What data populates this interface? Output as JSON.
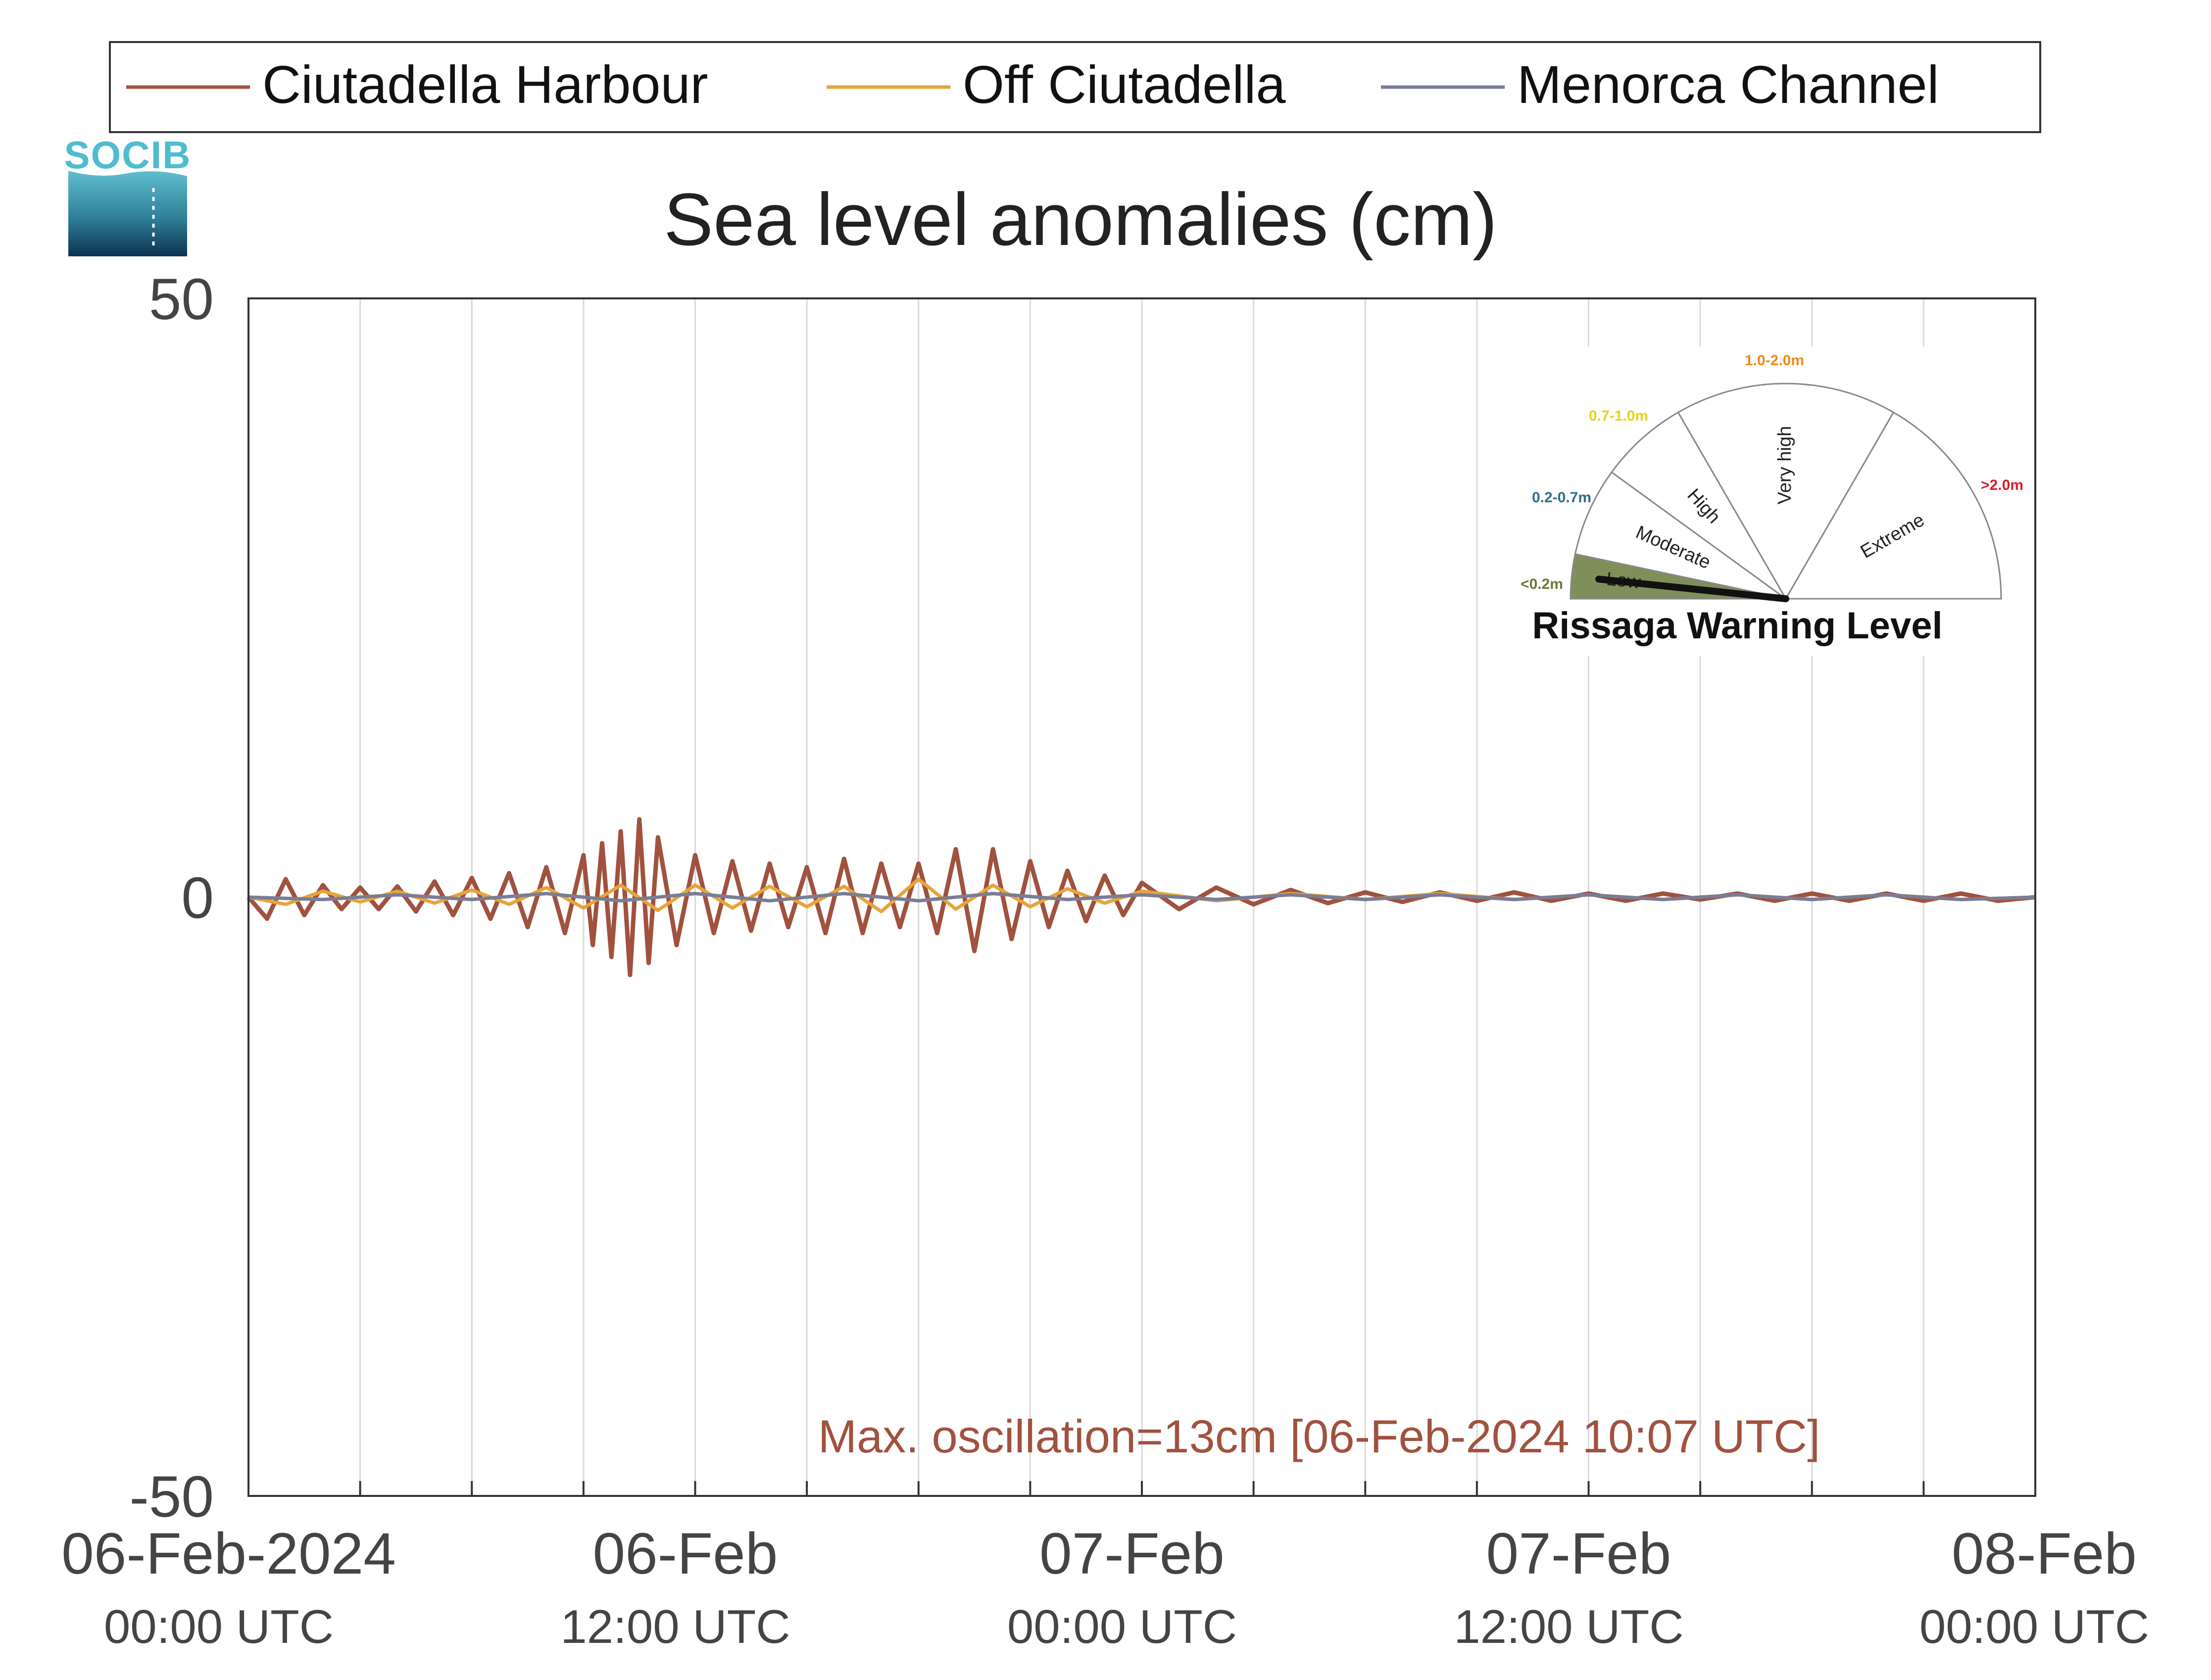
{
  "logo": {
    "text": "SOCIB",
    "color": "#4dbdcf"
  },
  "chart_data": {
    "type": "line",
    "title": "Sea level anomalies (cm)",
    "xlabel": "",
    "ylabel": "",
    "ylim": [
      -50,
      50
    ],
    "xlim_hours": [
      0,
      48
    ],
    "yticks": [
      {
        "value": 50,
        "label": "50"
      },
      {
        "value": 0,
        "label": "0"
      },
      {
        "value": -50,
        "label": "-50"
      }
    ],
    "xticks": [
      {
        "hour": 0,
        "line1": "06-Feb-2024",
        "line2": "00:00 UTC"
      },
      {
        "hour": 12,
        "line1": "06-Feb",
        "line2": "12:00 UTC"
      },
      {
        "hour": 24,
        "line1": "07-Feb",
        "line2": "00:00 UTC"
      },
      {
        "hour": 36,
        "line1": "07-Feb",
        "line2": "12:00 UTC"
      },
      {
        "hour": 48,
        "line1": "08-Feb",
        "line2": "00:00 UTC"
      }
    ],
    "grid": true,
    "grid_step_hours": 3,
    "legend_position": "top",
    "series": [
      {
        "name": "Ciutadella Harbour",
        "color": "#a0523f",
        "x_hours": [
          0,
          0.5,
          1,
          1.5,
          2,
          2.5,
          3,
          3.5,
          4,
          4.5,
          5,
          5.5,
          6,
          6.5,
          7,
          7.5,
          8,
          8.5,
          9,
          9.25,
          9.5,
          9.75,
          10,
          10.25,
          10.5,
          10.75,
          11,
          11.5,
          12,
          12.5,
          13,
          13.5,
          14,
          14.5,
          15,
          15.5,
          16,
          16.5,
          17,
          17.5,
          18,
          18.5,
          19,
          19.5,
          20,
          20.5,
          21,
          21.5,
          22,
          22.5,
          23,
          23.5,
          24,
          25,
          26,
          27,
          28,
          29,
          30,
          31,
          32,
          33,
          34,
          35,
          36,
          37,
          38,
          39,
          40,
          41,
          42,
          43,
          44,
          45,
          46,
          47,
          48
        ],
        "values": [
          0,
          -1.8,
          1.5,
          -1.5,
          1.0,
          -1.0,
          0.8,
          -1.0,
          0.9,
          -1.2,
          1.3,
          -1.5,
          1.6,
          -1.8,
          2.0,
          -2.5,
          2.5,
          -3.0,
          3.5,
          -4.0,
          4.5,
          -5.0,
          5.5,
          -6.5,
          6.5,
          -5.5,
          5.0,
          -4.0,
          3.5,
          -3.0,
          3.0,
          -2.8,
          2.8,
          -2.5,
          2.5,
          -3.0,
          3.2,
          -3.0,
          2.8,
          -2.5,
          2.8,
          -3.0,
          4.0,
          -4.5,
          4.0,
          -3.5,
          3.0,
          -2.5,
          2.2,
          -2.0,
          1.8,
          -1.5,
          1.2,
          -1.0,
          0.8,
          -0.6,
          0.6,
          -0.5,
          0.4,
          -0.4,
          0.4,
          -0.3,
          0.4,
          -0.3,
          0.3,
          -0.3,
          0.3,
          -0.2,
          0.3,
          -0.3,
          0.3,
          -0.3,
          0.3,
          -0.3,
          0.3,
          -0.3,
          0
        ]
      },
      {
        "name": "Off Ciutadella",
        "color": "#e6a43a",
        "x_hours": [
          0,
          1,
          2,
          3,
          4,
          5,
          6,
          7,
          8,
          9,
          10,
          11,
          12,
          13,
          14,
          15,
          16,
          17,
          18,
          19,
          20,
          21,
          22,
          23,
          24,
          26,
          28,
          30,
          32,
          34,
          36,
          38,
          40,
          42,
          44,
          46,
          48
        ],
        "values": [
          0,
          -0.6,
          0.5,
          -0.4,
          0.5,
          -0.5,
          0.6,
          -0.6,
          0.8,
          -0.9,
          1.0,
          -1.1,
          1.0,
          -0.9,
          0.9,
          -0.8,
          0.9,
          -1.2,
          1.5,
          -1.0,
          1.0,
          -0.8,
          0.7,
          -0.5,
          0.5,
          -0.3,
          0.3,
          -0.2,
          0.3,
          -0.2,
          0.2,
          -0.2,
          0.2,
          -0.2,
          0.2,
          -0.2,
          0
        ]
      },
      {
        "name": "Menorca Channel",
        "color": "#7a7d96",
        "x_hours": [
          0,
          2,
          4,
          6,
          8,
          10,
          12,
          14,
          16,
          18,
          20,
          22,
          24,
          26,
          28,
          30,
          32,
          34,
          36,
          38,
          40,
          42,
          44,
          46,
          48
        ],
        "values": [
          0,
          -0.2,
          0.2,
          -0.2,
          0.3,
          -0.3,
          0.3,
          -0.3,
          0.3,
          -0.3,
          0.3,
          -0.2,
          0.2,
          -0.2,
          0.2,
          -0.2,
          0.2,
          -0.2,
          0.2,
          -0.2,
          0.2,
          -0.2,
          0.2,
          -0.2,
          0
        ]
      }
    ],
    "annotation": {
      "text": "Max. oscillation=13cm [06-Feb-2024 10:07 UTC]",
      "color": "#a0523f"
    }
  },
  "gauge": {
    "title": "Rissaga Warning Level",
    "level": "Low",
    "sectors": [
      {
        "name": "Low",
        "range": "<0.2m",
        "range_color": "#6b7a3a"
      },
      {
        "name": "Moderate",
        "range": "0.2-0.7m",
        "range_color": "#2e6f8e"
      },
      {
        "name": "High",
        "range": "0.7-1.0m",
        "range_color": "#e8d21a"
      },
      {
        "name": "Very high",
        "range": "1.0-2.0m",
        "range_color": "#ef8a1a"
      },
      {
        "name": "Extreme",
        "range": ">2.0m",
        "range_color": "#d6202a"
      }
    ],
    "active_color": "#7f8f5a"
  }
}
